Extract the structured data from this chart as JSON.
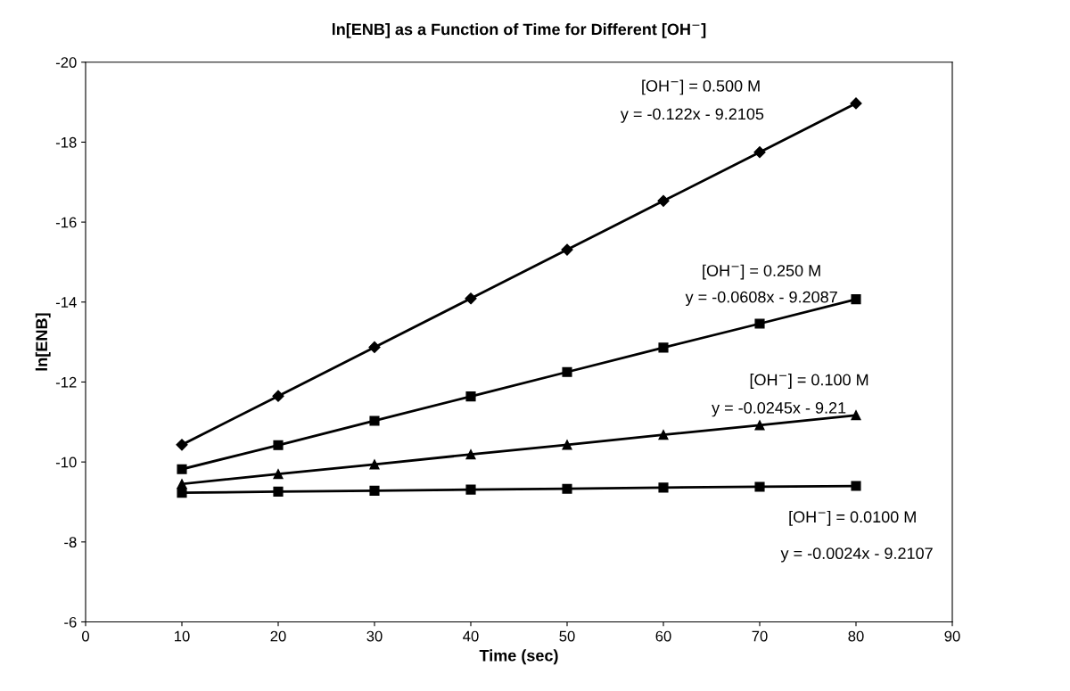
{
  "chart_data": {
    "type": "line",
    "title": "ln[ENB] as a Function of Time for Different [OH$^{−}$]",
    "xlabel": "Time (sec)",
    "ylabel": "ln[ENB]",
    "x": [
      10,
      20,
      30,
      40,
      50,
      60,
      70,
      80
    ],
    "series": [
      {
        "color": "#000000",
        "marker": "diamond",
        "values": [
          -10.43,
          -11.65,
          -12.87,
          -14.09,
          -15.31,
          -16.53,
          -17.75,
          -18.97
        ]
      },
      {
        "color": "#000000",
        "marker": "square",
        "values": [
          -9.82,
          -10.42,
          -11.03,
          -11.64,
          -12.25,
          -12.86,
          -13.46,
          -14.07
        ]
      },
      {
        "color": "#000000",
        "marker": "triangle",
        "values": [
          -9.45,
          -9.7,
          -9.94,
          -10.19,
          -10.43,
          -10.68,
          -10.92,
          -11.17
        ]
      },
      {
        "color": "#000000",
        "marker": "square",
        "values": [
          -9.23,
          -9.26,
          -9.28,
          -9.31,
          -9.33,
          -9.36,
          -9.38,
          -9.4
        ]
      }
    ],
    "xlim": [
      0,
      90
    ],
    "xticks": [
      0,
      10,
      20,
      30,
      40,
      50,
      60,
      70,
      80,
      90
    ],
    "ylim": [
      -6,
      -20
    ],
    "yticks": [
      -6,
      -8,
      -10,
      -12,
      -14,
      -16,
      -18,
      -20
    ],
    "grid": false,
    "legend": false,
    "line_style": "solid",
    "annotations": [
      "[OH$^{−}$] = 0.500 M",
      "y = -0.122x - 9.2105",
      "[OH$^{−}$] = 0.250 M",
      "y = -0.0608x - 9.2087",
      "[OH$^{−}$] = 0.100 M",
      "y = -0.0245x - 9.21",
      "[OH$^{−}$] = 0.0100 M",
      "y = -0.0024x - 9.2107"
    ]
  }
}
